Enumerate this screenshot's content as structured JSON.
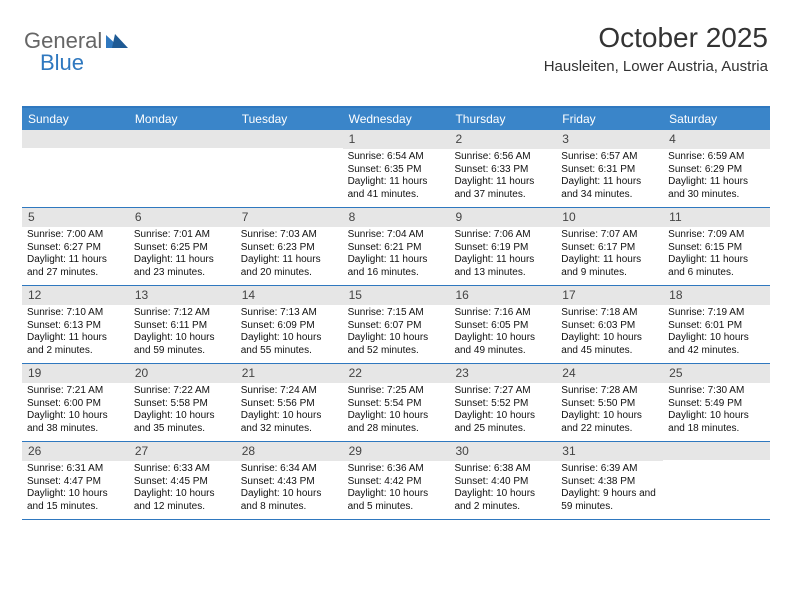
{
  "logo": {
    "text1": "General",
    "text2": "Blue"
  },
  "title": "October 2025",
  "location": "Hausleiten, Lower Austria, Austria",
  "colors": {
    "header_bg": "#3a85c9",
    "header_text": "#ffffff",
    "border_blue": "#2f78bf",
    "num_bg": "#e6e6e6",
    "title_color": "#333333",
    "body_text": "#111111"
  },
  "daynames": [
    "Sunday",
    "Monday",
    "Tuesday",
    "Wednesday",
    "Thursday",
    "Friday",
    "Saturday"
  ],
  "weeks": [
    [
      {
        "n": "",
        "sr": "",
        "ss": "",
        "dl": ""
      },
      {
        "n": "",
        "sr": "",
        "ss": "",
        "dl": ""
      },
      {
        "n": "",
        "sr": "",
        "ss": "",
        "dl": ""
      },
      {
        "n": "1",
        "sr": "Sunrise: 6:54 AM",
        "ss": "Sunset: 6:35 PM",
        "dl": "Daylight: 11 hours and 41 minutes."
      },
      {
        "n": "2",
        "sr": "Sunrise: 6:56 AM",
        "ss": "Sunset: 6:33 PM",
        "dl": "Daylight: 11 hours and 37 minutes."
      },
      {
        "n": "3",
        "sr": "Sunrise: 6:57 AM",
        "ss": "Sunset: 6:31 PM",
        "dl": "Daylight: 11 hours and 34 minutes."
      },
      {
        "n": "4",
        "sr": "Sunrise: 6:59 AM",
        "ss": "Sunset: 6:29 PM",
        "dl": "Daylight: 11 hours and 30 minutes."
      }
    ],
    [
      {
        "n": "5",
        "sr": "Sunrise: 7:00 AM",
        "ss": "Sunset: 6:27 PM",
        "dl": "Daylight: 11 hours and 27 minutes."
      },
      {
        "n": "6",
        "sr": "Sunrise: 7:01 AM",
        "ss": "Sunset: 6:25 PM",
        "dl": "Daylight: 11 hours and 23 minutes."
      },
      {
        "n": "7",
        "sr": "Sunrise: 7:03 AM",
        "ss": "Sunset: 6:23 PM",
        "dl": "Daylight: 11 hours and 20 minutes."
      },
      {
        "n": "8",
        "sr": "Sunrise: 7:04 AM",
        "ss": "Sunset: 6:21 PM",
        "dl": "Daylight: 11 hours and 16 minutes."
      },
      {
        "n": "9",
        "sr": "Sunrise: 7:06 AM",
        "ss": "Sunset: 6:19 PM",
        "dl": "Daylight: 11 hours and 13 minutes."
      },
      {
        "n": "10",
        "sr": "Sunrise: 7:07 AM",
        "ss": "Sunset: 6:17 PM",
        "dl": "Daylight: 11 hours and 9 minutes."
      },
      {
        "n": "11",
        "sr": "Sunrise: 7:09 AM",
        "ss": "Sunset: 6:15 PM",
        "dl": "Daylight: 11 hours and 6 minutes."
      }
    ],
    [
      {
        "n": "12",
        "sr": "Sunrise: 7:10 AM",
        "ss": "Sunset: 6:13 PM",
        "dl": "Daylight: 11 hours and 2 minutes."
      },
      {
        "n": "13",
        "sr": "Sunrise: 7:12 AM",
        "ss": "Sunset: 6:11 PM",
        "dl": "Daylight: 10 hours and 59 minutes."
      },
      {
        "n": "14",
        "sr": "Sunrise: 7:13 AM",
        "ss": "Sunset: 6:09 PM",
        "dl": "Daylight: 10 hours and 55 minutes."
      },
      {
        "n": "15",
        "sr": "Sunrise: 7:15 AM",
        "ss": "Sunset: 6:07 PM",
        "dl": "Daylight: 10 hours and 52 minutes."
      },
      {
        "n": "16",
        "sr": "Sunrise: 7:16 AM",
        "ss": "Sunset: 6:05 PM",
        "dl": "Daylight: 10 hours and 49 minutes."
      },
      {
        "n": "17",
        "sr": "Sunrise: 7:18 AM",
        "ss": "Sunset: 6:03 PM",
        "dl": "Daylight: 10 hours and 45 minutes."
      },
      {
        "n": "18",
        "sr": "Sunrise: 7:19 AM",
        "ss": "Sunset: 6:01 PM",
        "dl": "Daylight: 10 hours and 42 minutes."
      }
    ],
    [
      {
        "n": "19",
        "sr": "Sunrise: 7:21 AM",
        "ss": "Sunset: 6:00 PM",
        "dl": "Daylight: 10 hours and 38 minutes."
      },
      {
        "n": "20",
        "sr": "Sunrise: 7:22 AM",
        "ss": "Sunset: 5:58 PM",
        "dl": "Daylight: 10 hours and 35 minutes."
      },
      {
        "n": "21",
        "sr": "Sunrise: 7:24 AM",
        "ss": "Sunset: 5:56 PM",
        "dl": "Daylight: 10 hours and 32 minutes."
      },
      {
        "n": "22",
        "sr": "Sunrise: 7:25 AM",
        "ss": "Sunset: 5:54 PM",
        "dl": "Daylight: 10 hours and 28 minutes."
      },
      {
        "n": "23",
        "sr": "Sunrise: 7:27 AM",
        "ss": "Sunset: 5:52 PM",
        "dl": "Daylight: 10 hours and 25 minutes."
      },
      {
        "n": "24",
        "sr": "Sunrise: 7:28 AM",
        "ss": "Sunset: 5:50 PM",
        "dl": "Daylight: 10 hours and 22 minutes."
      },
      {
        "n": "25",
        "sr": "Sunrise: 7:30 AM",
        "ss": "Sunset: 5:49 PM",
        "dl": "Daylight: 10 hours and 18 minutes."
      }
    ],
    [
      {
        "n": "26",
        "sr": "Sunrise: 6:31 AM",
        "ss": "Sunset: 4:47 PM",
        "dl": "Daylight: 10 hours and 15 minutes."
      },
      {
        "n": "27",
        "sr": "Sunrise: 6:33 AM",
        "ss": "Sunset: 4:45 PM",
        "dl": "Daylight: 10 hours and 12 minutes."
      },
      {
        "n": "28",
        "sr": "Sunrise: 6:34 AM",
        "ss": "Sunset: 4:43 PM",
        "dl": "Daylight: 10 hours and 8 minutes."
      },
      {
        "n": "29",
        "sr": "Sunrise: 6:36 AM",
        "ss": "Sunset: 4:42 PM",
        "dl": "Daylight: 10 hours and 5 minutes."
      },
      {
        "n": "30",
        "sr": "Sunrise: 6:38 AM",
        "ss": "Sunset: 4:40 PM",
        "dl": "Daylight: 10 hours and 2 minutes."
      },
      {
        "n": "31",
        "sr": "Sunrise: 6:39 AM",
        "ss": "Sunset: 4:38 PM",
        "dl": "Daylight: 9 hours and 59 minutes."
      },
      {
        "n": "",
        "sr": "",
        "ss": "",
        "dl": ""
      }
    ]
  ]
}
